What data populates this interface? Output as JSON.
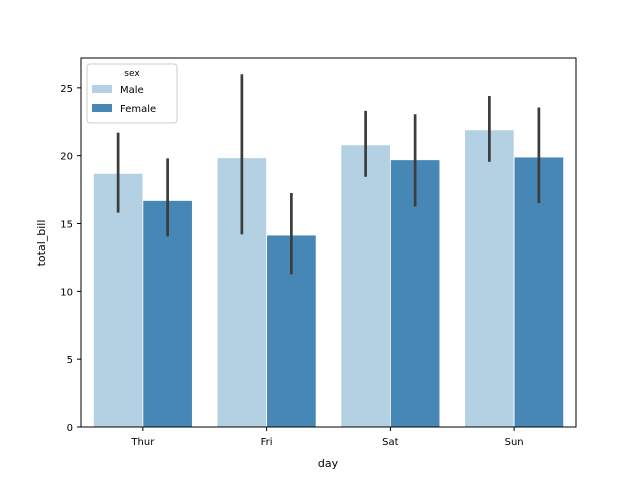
{
  "chart_data": {
    "type": "bar",
    "categories": [
      "Thur",
      "Fri",
      "Sat",
      "Sun"
    ],
    "xlabel": "day",
    "ylabel": "total_bill",
    "ylim": [
      0,
      27.2
    ],
    "yticks": [
      0,
      5,
      10,
      15,
      20,
      25
    ],
    "grid": false,
    "legend": {
      "title": "sex",
      "placement": "top-left",
      "entries": [
        "Male",
        "Female"
      ]
    },
    "series": [
      {
        "name": "Male",
        "color": "#b3d1e3",
        "values": [
          18.7,
          19.85,
          20.8,
          21.9
        ],
        "error_low": [
          15.8,
          14.2,
          18.45,
          19.55
        ],
        "error_high": [
          21.7,
          26.0,
          23.3,
          24.4
        ]
      },
      {
        "name": "Female",
        "color": "#4787b5",
        "values": [
          16.7,
          14.15,
          19.7,
          19.9
        ],
        "error_low": [
          14.05,
          11.25,
          16.25,
          16.5
        ],
        "error_high": [
          19.8,
          17.25,
          23.05,
          23.55
        ]
      }
    ],
    "error_bar_color": "#3c3c3c"
  }
}
